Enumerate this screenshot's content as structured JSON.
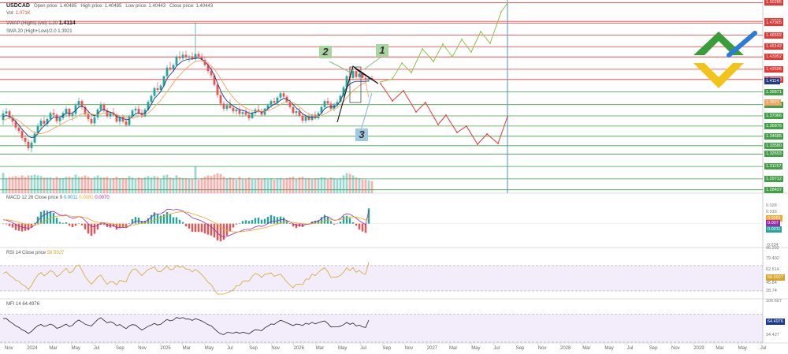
{
  "header": {
    "symbol": "USDCAD",
    "open": "Open price: 1.40485",
    "high": "High price: 1.40485",
    "low": "Low price: 1.40443",
    "close": "Close price: 1.40443",
    "vol_label": "Vol:",
    "vol_value": "1.071K",
    "vwap_label": "VWAP (Highs) (vol) 1.20",
    "vwap_value": "1.4114",
    "sma_label": "SMA 20 (High+Low)/2.0",
    "sma_value": "1.3921"
  },
  "indicators": {
    "macd_label": "MACD 12 26 Close price 9",
    "macd_v1": "0.0011",
    "macd_v2": "0.0081",
    "macd_v3": "0.0070",
    "rsi_label": "RSI 14 Close price",
    "rsi_value": "56.5927",
    "mfi_label": "MFI 14",
    "mfi_value": "64.4976"
  },
  "wave_labels": [
    "1",
    "2",
    "3"
  ],
  "colors": {
    "up": "#26a69a",
    "down": "#ef5350",
    "green_path": "#8bc34a",
    "red_path": "#e53935",
    "vwap": "#1e3a8a",
    "sma": "#f4a460",
    "logo_green": "#3a9d3a",
    "logo_blue": "#2b7bd8",
    "logo_yellow": "#f2c318",
    "rsi": "#d4a72c",
    "mfi": "#222222"
  },
  "chart_data": {
    "type": "candlestick",
    "title": "USDCAD",
    "y_ticks": [
      1.50285,
      1.48095,
      1.47905,
      1.46502,
      1.45142,
      1.43952,
      1.4329,
      1.42506,
      1.4114,
      1.39871,
      1.3921,
      1.38383,
      1.37066,
      1.35876,
      1.34685,
      1.3358,
      1.32603,
      1.31157,
      1.29712,
      1.28437
    ],
    "price_tags_red": [
      "1.50285",
      "1.48095",
      "1.47905",
      "1.46502",
      "1.45142",
      "1.43952",
      "1.42506",
      "1.41318"
    ],
    "price_tags_blue": [
      "1.4114"
    ],
    "price_tags_orange": [
      "1.3921"
    ],
    "price_tags_green": [
      "1.39871",
      "1.38383",
      "1.37066",
      "1.35876",
      "1.34685",
      "1.33580",
      "1.32603",
      "1.31157",
      "1.29712",
      "1.28437"
    ],
    "price_ylim": [
      1.2804,
      1.506
    ],
    "candles": [
      [
        1.366,
        1.3775,
        1.36,
        1.3735
      ],
      [
        1.3735,
        1.3802,
        1.37,
        1.376
      ],
      [
        1.376,
        1.378,
        1.3665,
        1.369
      ],
      [
        1.369,
        1.372,
        1.36,
        1.364
      ],
      [
        1.364,
        1.367,
        1.354,
        1.357
      ],
      [
        1.357,
        1.361,
        1.35,
        1.353
      ],
      [
        1.353,
        1.356,
        1.342,
        1.345
      ],
      [
        1.345,
        1.3485,
        1.337,
        1.3405
      ],
      [
        1.3405,
        1.344,
        1.33,
        1.333
      ],
      [
        1.333,
        1.342,
        1.328,
        1.3395
      ],
      [
        1.3395,
        1.353,
        1.338,
        1.35
      ],
      [
        1.35,
        1.362,
        1.348,
        1.359
      ],
      [
        1.359,
        1.368,
        1.355,
        1.365
      ],
      [
        1.365,
        1.37,
        1.359,
        1.3615
      ],
      [
        1.3615,
        1.369,
        1.358,
        1.367
      ],
      [
        1.367,
        1.376,
        1.365,
        1.374
      ],
      [
        1.374,
        1.379,
        1.369,
        1.372
      ],
      [
        1.372,
        1.374,
        1.362,
        1.3645
      ],
      [
        1.3645,
        1.37,
        1.36,
        1.368
      ],
      [
        1.368,
        1.376,
        1.366,
        1.374
      ],
      [
        1.374,
        1.382,
        1.37,
        1.379
      ],
      [
        1.379,
        1.38,
        1.368,
        1.371
      ],
      [
        1.371,
        1.376,
        1.365,
        1.373
      ],
      [
        1.373,
        1.386,
        1.371,
        1.383
      ],
      [
        1.383,
        1.392,
        1.38,
        1.388
      ],
      [
        1.388,
        1.39,
        1.378,
        1.381
      ],
      [
        1.381,
        1.384,
        1.37,
        1.3725
      ],
      [
        1.3725,
        1.376,
        1.364,
        1.367
      ],
      [
        1.367,
        1.37,
        1.36,
        1.362
      ],
      [
        1.362,
        1.371,
        1.359,
        1.369
      ],
      [
        1.369,
        1.38,
        1.366,
        1.378
      ],
      [
        1.378,
        1.387,
        1.376,
        1.384
      ],
      [
        1.384,
        1.386,
        1.375,
        1.377
      ],
      [
        1.377,
        1.38,
        1.368,
        1.37
      ],
      [
        1.37,
        1.376,
        1.367,
        1.3745
      ],
      [
        1.3745,
        1.38,
        1.37,
        1.3715
      ],
      [
        1.3715,
        1.374,
        1.362,
        1.364
      ],
      [
        1.364,
        1.37,
        1.36,
        1.369
      ],
      [
        1.369,
        1.372,
        1.362,
        1.364
      ],
      [
        1.364,
        1.368,
        1.358,
        1.36
      ],
      [
        1.36,
        1.372,
        1.359,
        1.37
      ],
      [
        1.37,
        1.379,
        1.368,
        1.377
      ],
      [
        1.377,
        1.382,
        1.373,
        1.379
      ],
      [
        1.379,
        1.383,
        1.372,
        1.374
      ],
      [
        1.374,
        1.378,
        1.368,
        1.37
      ],
      [
        1.37,
        1.38,
        1.369,
        1.378
      ],
      [
        1.378,
        1.389,
        1.376,
        1.387
      ],
      [
        1.387,
        1.396,
        1.385,
        1.394
      ],
      [
        1.394,
        1.405,
        1.392,
        1.403
      ],
      [
        1.403,
        1.41,
        1.398,
        1.401
      ],
      [
        1.401,
        1.408,
        1.399,
        1.406
      ],
      [
        1.406,
        1.418,
        1.404,
        1.417
      ],
      [
        1.417,
        1.43,
        1.415,
        1.427
      ],
      [
        1.427,
        1.434,
        1.423,
        1.425
      ],
      [
        1.425,
        1.432,
        1.422,
        1.43
      ],
      [
        1.43,
        1.442,
        1.428,
        1.44
      ],
      [
        1.44,
        1.446,
        1.435,
        1.438
      ],
      [
        1.438,
        1.446,
        1.436,
        1.442
      ],
      [
        1.442,
        1.447,
        1.437,
        1.439
      ],
      [
        1.439,
        1.442,
        1.433,
        1.44
      ],
      [
        1.44,
        1.445,
        1.436,
        1.437
      ],
      [
        1.437,
        1.48,
        1.434,
        1.443
      ],
      [
        1.443,
        1.446,
        1.438,
        1.44
      ],
      [
        1.44,
        1.444,
        1.434,
        1.436
      ],
      [
        1.436,
        1.44,
        1.428,
        1.43
      ],
      [
        1.43,
        1.434,
        1.42,
        1.423
      ],
      [
        1.423,
        1.428,
        1.415,
        1.418
      ],
      [
        1.418,
        1.42,
        1.405,
        1.407
      ],
      [
        1.407,
        1.409,
        1.392,
        1.395
      ],
      [
        1.395,
        1.398,
        1.382,
        1.385
      ],
      [
        1.385,
        1.388,
        1.376,
        1.379
      ],
      [
        1.379,
        1.386,
        1.376,
        1.383
      ],
      [
        1.383,
        1.39,
        1.379,
        1.38
      ],
      [
        1.38,
        1.383,
        1.373,
        1.376
      ],
      [
        1.376,
        1.38,
        1.372,
        1.378
      ],
      [
        1.378,
        1.382,
        1.37,
        1.373
      ],
      [
        1.373,
        1.378,
        1.369,
        1.375
      ],
      [
        1.375,
        1.379,
        1.37,
        1.372
      ],
      [
        1.372,
        1.376,
        1.365,
        1.368
      ],
      [
        1.368,
        1.376,
        1.367,
        1.374
      ],
      [
        1.374,
        1.38,
        1.371,
        1.378
      ],
      [
        1.378,
        1.384,
        1.374,
        1.376
      ],
      [
        1.376,
        1.379,
        1.37,
        1.372
      ],
      [
        1.372,
        1.38,
        1.37,
        1.379
      ],
      [
        1.379,
        1.385,
        1.376,
        1.383
      ],
      [
        1.383,
        1.39,
        1.38,
        1.388
      ],
      [
        1.388,
        1.392,
        1.384,
        1.386
      ],
      [
        1.386,
        1.394,
        1.384,
        1.392
      ],
      [
        1.392,
        1.399,
        1.389,
        1.397
      ],
      [
        1.397,
        1.4,
        1.391,
        1.393
      ],
      [
        1.393,
        1.395,
        1.385,
        1.387
      ],
      [
        1.387,
        1.39,
        1.379,
        1.381
      ],
      [
        1.381,
        1.384,
        1.372,
        1.374
      ],
      [
        1.374,
        1.379,
        1.37,
        1.376
      ],
      [
        1.376,
        1.38,
        1.369,
        1.371
      ],
      [
        1.371,
        1.374,
        1.362,
        1.365
      ],
      [
        1.365,
        1.372,
        1.362,
        1.37
      ],
      [
        1.37,
        1.374,
        1.364,
        1.366
      ],
      [
        1.366,
        1.373,
        1.364,
        1.372
      ],
      [
        1.372,
        1.376,
        1.366,
        1.368
      ],
      [
        1.368,
        1.376,
        1.366,
        1.374
      ],
      [
        1.374,
        1.383,
        1.372,
        1.381
      ],
      [
        1.381,
        1.39,
        1.379,
        1.388
      ],
      [
        1.388,
        1.392,
        1.383,
        1.385
      ],
      [
        1.385,
        1.388,
        1.377,
        1.379
      ],
      [
        1.379,
        1.386,
        1.376,
        1.384
      ],
      [
        1.384,
        1.39,
        1.381,
        1.387
      ],
      [
        1.387,
        1.396,
        1.386,
        1.394
      ],
      [
        1.394,
        1.406,
        1.392,
        1.404
      ],
      [
        1.404,
        1.419,
        1.402,
        1.417
      ],
      [
        1.417,
        1.428,
        1.412,
        1.415
      ],
      [
        1.415,
        1.426,
        1.412,
        1.423
      ],
      [
        1.423,
        1.425,
        1.414,
        1.416
      ],
      [
        1.416,
        1.423,
        1.413,
        1.42
      ],
      [
        1.42,
        1.422,
        1.414,
        1.415
      ],
      [
        1.415,
        1.418,
        1.41,
        1.413
      ],
      [
        1.413,
        1.417,
        1.41,
        1.415
      ],
      [
        1.415,
        1.418,
        1.412,
        1.414
      ]
    ],
    "vwap": [
      1.37,
      1.371,
      1.37,
      1.368,
      1.364,
      1.36,
      1.355,
      1.351,
      1.347,
      1.345,
      1.346,
      1.35,
      1.355,
      1.359,
      1.362,
      1.366,
      1.369,
      1.369,
      1.369,
      1.371,
      1.374,
      1.374,
      1.374,
      1.377,
      1.381,
      1.382,
      1.38,
      1.376,
      1.372,
      1.371,
      1.373,
      1.377,
      1.378,
      1.376,
      1.375,
      1.374,
      1.37,
      1.369,
      1.368,
      1.366,
      1.367,
      1.37,
      1.373,
      1.374,
      1.373,
      1.374,
      1.378,
      1.384,
      1.391,
      1.395,
      1.399,
      1.406,
      1.414,
      1.419,
      1.423,
      1.429,
      1.432,
      1.435,
      1.436,
      1.437,
      1.437,
      1.438,
      1.438,
      1.437,
      1.434,
      1.43,
      1.425,
      1.418,
      1.409,
      1.4,
      1.393,
      1.388,
      1.385,
      1.382,
      1.38,
      1.378,
      1.377,
      1.376,
      1.374,
      1.374,
      1.375,
      1.376,
      1.375,
      1.376,
      1.379,
      1.382,
      1.384,
      1.386,
      1.389,
      1.391,
      1.39,
      1.388,
      1.384,
      1.38,
      1.377,
      1.373,
      1.371,
      1.369,
      1.369,
      1.369,
      1.37,
      1.374,
      1.379,
      1.381,
      1.381,
      1.381,
      1.383,
      1.388,
      1.397,
      1.404,
      1.408,
      1.41,
      1.411,
      1.411,
      1.411,
      1.411,
      1.4114
    ],
    "sma": [
      1.365,
      1.367,
      1.368,
      1.368,
      1.367,
      1.365,
      1.362,
      1.359,
      1.356,
      1.353,
      1.351,
      1.35,
      1.35,
      1.351,
      1.352,
      1.354,
      1.356,
      1.358,
      1.36,
      1.362,
      1.364,
      1.366,
      1.367,
      1.369,
      1.371,
      1.373,
      1.374,
      1.374,
      1.373,
      1.372,
      1.372,
      1.373,
      1.374,
      1.374,
      1.374,
      1.373,
      1.372,
      1.371,
      1.37,
      1.369,
      1.368,
      1.368,
      1.369,
      1.37,
      1.371,
      1.372,
      1.374,
      1.377,
      1.381,
      1.385,
      1.389,
      1.394,
      1.399,
      1.404,
      1.409,
      1.414,
      1.418,
      1.422,
      1.426,
      1.429,
      1.432,
      1.434,
      1.435,
      1.435,
      1.434,
      1.432,
      1.429,
      1.425,
      1.42,
      1.414,
      1.408,
      1.402,
      1.397,
      1.392,
      1.388,
      1.385,
      1.382,
      1.38,
      1.378,
      1.377,
      1.376,
      1.376,
      1.376,
      1.376,
      1.377,
      1.378,
      1.38,
      1.382,
      1.384,
      1.386,
      1.387,
      1.387,
      1.386,
      1.384,
      1.381,
      1.378,
      1.375,
      1.373,
      1.371,
      1.37,
      1.37,
      1.371,
      1.373,
      1.375,
      1.377,
      1.379,
      1.38,
      1.383,
      1.387,
      1.392,
      1.396,
      1.4,
      1.403,
      1.406,
      1.408,
      1.41,
      1.3921
    ],
    "green_path": [
      [
        483,
        104
      ],
      [
        498,
        100
      ],
      [
        510,
        80
      ],
      [
        522,
        92
      ],
      [
        536,
        62
      ],
      [
        550,
        78
      ],
      [
        562,
        56
      ],
      [
        574,
        72
      ],
      [
        586,
        50
      ],
      [
        598,
        66
      ],
      [
        610,
        40
      ],
      [
        622,
        55
      ],
      [
        636,
        15
      ],
      [
        644,
        4
      ]
    ],
    "red_path": [
      [
        483,
        106
      ],
      [
        498,
        128
      ],
      [
        512,
        115
      ],
      [
        528,
        142
      ],
      [
        540,
        130
      ],
      [
        556,
        158
      ],
      [
        566,
        146
      ],
      [
        580,
        168
      ],
      [
        592,
        160
      ],
      [
        606,
        183
      ],
      [
        618,
        170
      ],
      [
        632,
        182
      ],
      [
        644,
        148
      ]
    ],
    "macd_ylim": [
      -0.034,
      0.026
    ],
    "macd_ticks": [
      0.026,
      0.016,
      0.0081,
      0.007,
      0.0011,
      -0.034
    ],
    "rsi_ylim": [
      20,
      96
    ],
    "rsi_ticks": [
      96.292,
      79.402,
      62.514,
      56.5927,
      45.84,
      28.74
    ],
    "mfi_ylim": [
      20,
      110
    ],
    "mfi_ticks": [
      106.607,
      64.4976,
      34.427
    ],
    "x_ticks": [
      "Nov",
      "2024",
      "Mar",
      "May",
      "Jul",
      "Sep",
      "Nov",
      "2025",
      "Mar",
      "May",
      "Jul",
      "Sep",
      "Nov",
      "2026",
      "Mar",
      "May",
      "Jul",
      "Sep",
      "Nov",
      "2027",
      "Mar",
      "May",
      "Jul",
      "Sep",
      "Nov",
      "2028",
      "Mar",
      "May",
      "Jul",
      "Sep",
      "Nov",
      "2029",
      "Mar",
      "May",
      "Jul"
    ]
  }
}
